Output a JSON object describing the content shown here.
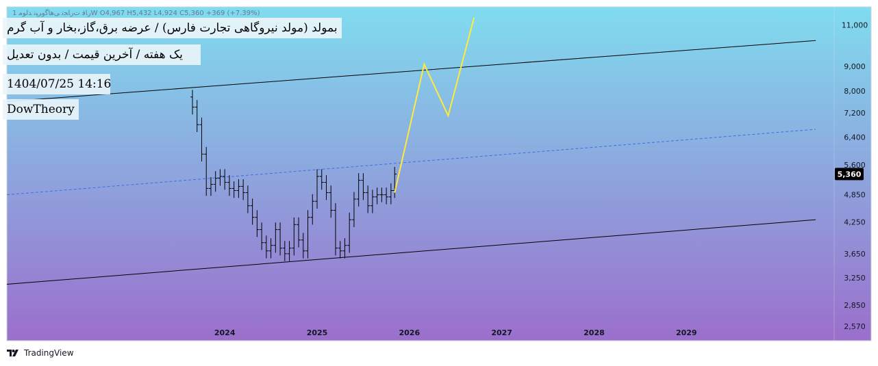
{
  "header": {
    "legend": "1 ﺭﺎﻓ ﺕﺭﺎﺠﺗ ﯽﻫﺎﮔﻭﺮﯿﻧ ﺪﻟﻮﻣW  O4,967  H5,432  L4,924  C5,360  +369 (+7.39%)",
    "title": "بمولد (مولد نیروگاهی تجارت فارس) / عرضه برق،گاز،بخار و آب گرم",
    "subtitle": "یک هفته / آخرین قیمت / بدون تعدیل",
    "datetime": "1404/07/25 14:16",
    "author": "DowTheory"
  },
  "footer": {
    "brand": "TradingView"
  },
  "colors": {
    "bg_top": "#80dcef",
    "bg_bottom": "#9b6fcc",
    "candle": "#000000",
    "channel": "#000000",
    "midline": "#3b6fe0",
    "projection": "#ffeb3b",
    "price_tag_bg": "#000000",
    "price_tag_text": "#ffffff"
  },
  "chart_data": {
    "type": "line",
    "scale": "log",
    "ylim": [
      2400,
      12000
    ],
    "yticks": [
      11000,
      9000,
      8000,
      7200,
      6400,
      5600,
      4850,
      4250,
      3650,
      3250,
      2850,
      2570
    ],
    "ytick_labels": [
      "11,000",
      "9,000",
      "8,000",
      "7,200",
      "6,400",
      "5,600",
      "4,850",
      "4,250",
      "3,650",
      "3,250",
      "2,850",
      "2,570"
    ],
    "xlim": [
      2021.64,
      2030.6
    ],
    "xticks": [
      2024,
      2025,
      2026,
      2027,
      2028,
      2029
    ],
    "xtick_labels": [
      "2024",
      "2025",
      "2026",
      "2027",
      "2028",
      "2029"
    ],
    "last_price": 5360,
    "last_price_label": "5,360",
    "series": [
      {
        "kind": "weekly-bars",
        "x": [
          2023.65,
          2023.7,
          2023.75,
          2023.8,
          2023.85,
          2023.9,
          2023.95,
          2024.0,
          2024.05,
          2024.1,
          2024.15,
          2024.2,
          2024.25,
          2024.3,
          2024.35,
          2024.4,
          2024.45,
          2024.5,
          2024.55,
          2024.6,
          2024.65,
          2024.7,
          2024.75,
          2024.8,
          2024.85,
          2024.9,
          2024.95,
          2025.0,
          2025.05,
          2025.1,
          2025.15,
          2025.2,
          2025.25,
          2025.3,
          2025.35,
          2025.4,
          2025.45,
          2025.5,
          2025.55,
          2025.6,
          2025.65,
          2025.7,
          2025.75,
          2025.8,
          2025.84
        ],
        "y": [
          7400,
          6800,
          5900,
          5000,
          5100,
          5250,
          5300,
          5150,
          5000,
          4950,
          5050,
          4900,
          4600,
          4350,
          4100,
          3850,
          3700,
          3800,
          4100,
          3750,
          3650,
          3750,
          4200,
          3900,
          3700,
          4350,
          4700,
          5300,
          5150,
          4900,
          4500,
          3750,
          3700,
          3800,
          4300,
          4750,
          5200,
          4900,
          4600,
          4800,
          4850,
          4850,
          4800,
          4950,
          5360
        ]
      },
      {
        "kind": "projection",
        "x": [
          2025.84,
          2026.16,
          2026.42,
          2026.7
        ],
        "y": [
          4900,
          9100,
          7100,
          11400
        ]
      },
      {
        "kind": "channel-upper",
        "x": [
          2021.64,
          2030.4
        ],
        "y": [
          7600,
          10200
        ]
      },
      {
        "kind": "channel-lower",
        "x": [
          2021.64,
          2030.4
        ],
        "y": [
          3150,
          4300
        ]
      },
      {
        "kind": "channel-mid",
        "x": [
          2021.64,
          2030.4
        ],
        "y": [
          4850,
          6650
        ]
      }
    ]
  }
}
